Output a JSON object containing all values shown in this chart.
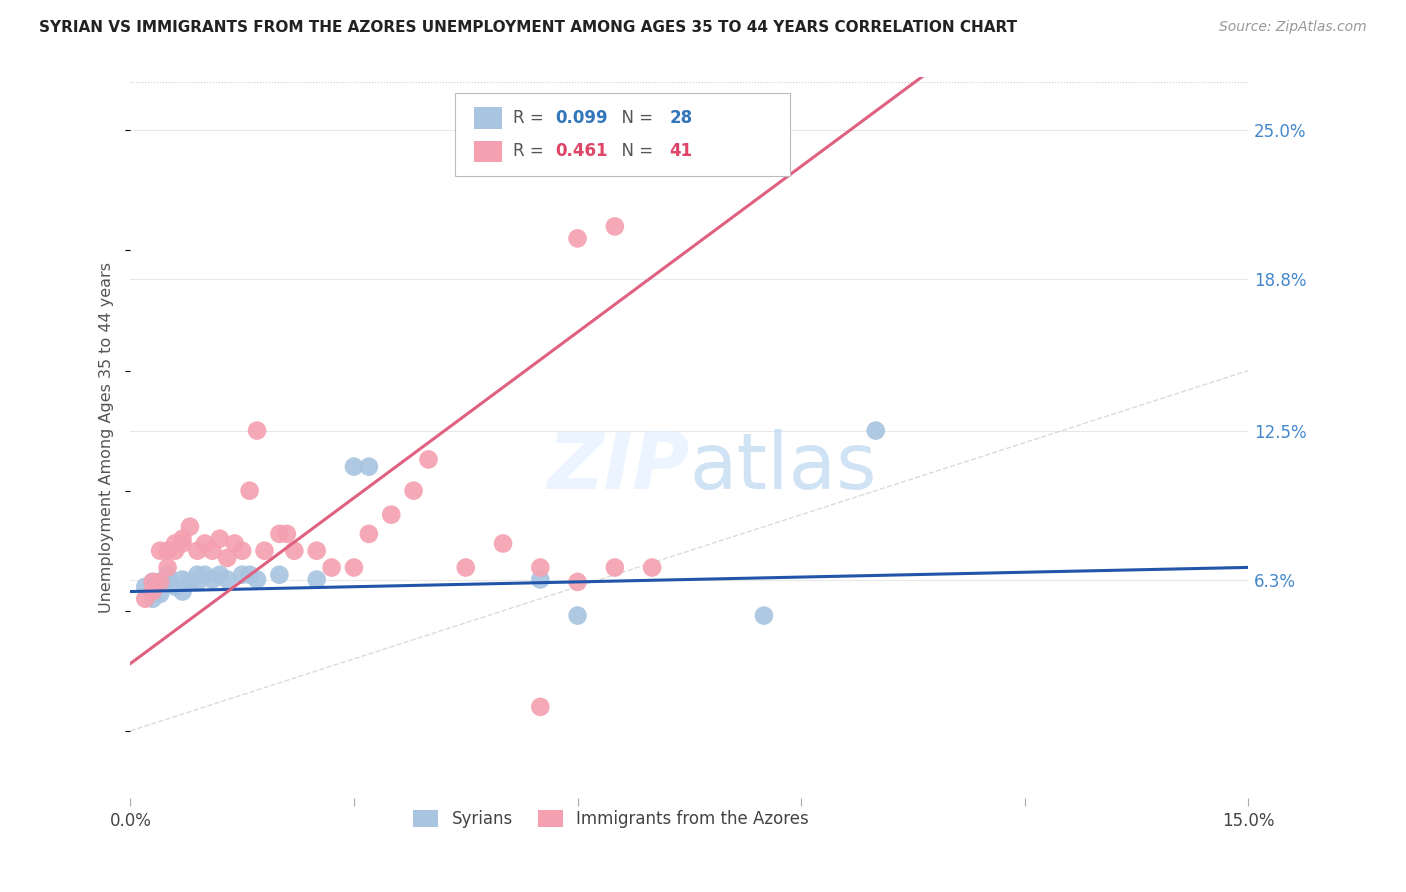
{
  "title": "SYRIAN VS IMMIGRANTS FROM THE AZORES UNEMPLOYMENT AMONG AGES 35 TO 44 YEARS CORRELATION CHART",
  "source": "Source: ZipAtlas.com",
  "ylabel": "Unemployment Among Ages 35 to 44 years",
  "xlim": [
    0.0,
    0.15
  ],
  "ylim": [
    -0.028,
    0.272
  ],
  "xtick_positions": [
    0.0,
    0.03,
    0.06,
    0.09,
    0.12,
    0.15
  ],
  "xtick_labels": [
    "0.0%",
    "",
    "",
    "",
    "",
    "15.0%"
  ],
  "ytick_right_vals": [
    0.063,
    0.125,
    0.188,
    0.25
  ],
  "ytick_right_labels": [
    "6.3%",
    "12.5%",
    "18.8%",
    "25.0%"
  ],
  "blue_scatter_color": "#A8C4E0",
  "pink_scatter_color": "#F4A0B0",
  "blue_line_color": "#2255AA",
  "pink_line_color": "#E06080",
  "diagonal_color": "#CCCCCC",
  "grid_color": "#E8E8E8",
  "legend_r1_val": "0.099",
  "legend_n1_val": "28",
  "legend_r2_val": "0.461",
  "legend_n2_val": "41",
  "syrians_x": [
    0.002,
    0.003,
    0.003,
    0.004,
    0.004,
    0.005,
    0.005,
    0.006,
    0.007,
    0.007,
    0.008,
    0.009,
    0.009,
    0.01,
    0.011,
    0.012,
    0.013,
    0.015,
    0.016,
    0.017,
    0.02,
    0.025,
    0.03,
    0.032,
    0.055,
    0.06,
    0.085,
    0.1
  ],
  "syrians_y": [
    0.06,
    0.055,
    0.062,
    0.057,
    0.062,
    0.062,
    0.065,
    0.06,
    0.058,
    0.063,
    0.062,
    0.062,
    0.065,
    0.065,
    0.063,
    0.065,
    0.063,
    0.065,
    0.065,
    0.063,
    0.065,
    0.063,
    0.11,
    0.11,
    0.063,
    0.048,
    0.048,
    0.125
  ],
  "azores_x": [
    0.002,
    0.003,
    0.003,
    0.004,
    0.004,
    0.005,
    0.005,
    0.006,
    0.006,
    0.007,
    0.007,
    0.008,
    0.009,
    0.01,
    0.011,
    0.012,
    0.013,
    0.014,
    0.015,
    0.016,
    0.017,
    0.018,
    0.02,
    0.021,
    0.022,
    0.025,
    0.027,
    0.03,
    0.032,
    0.035,
    0.038,
    0.04,
    0.045,
    0.05,
    0.055,
    0.06,
    0.065,
    0.07,
    0.055,
    0.06,
    0.065
  ],
  "azores_y": [
    0.055,
    0.058,
    0.062,
    0.062,
    0.075,
    0.068,
    0.075,
    0.075,
    0.078,
    0.078,
    0.08,
    0.085,
    0.075,
    0.078,
    0.075,
    0.08,
    0.072,
    0.078,
    0.075,
    0.1,
    0.125,
    0.075,
    0.082,
    0.082,
    0.075,
    0.075,
    0.068,
    0.068,
    0.082,
    0.09,
    0.1,
    0.113,
    0.068,
    0.078,
    0.068,
    0.062,
    0.068,
    0.068,
    0.01,
    0.205,
    0.21
  ]
}
